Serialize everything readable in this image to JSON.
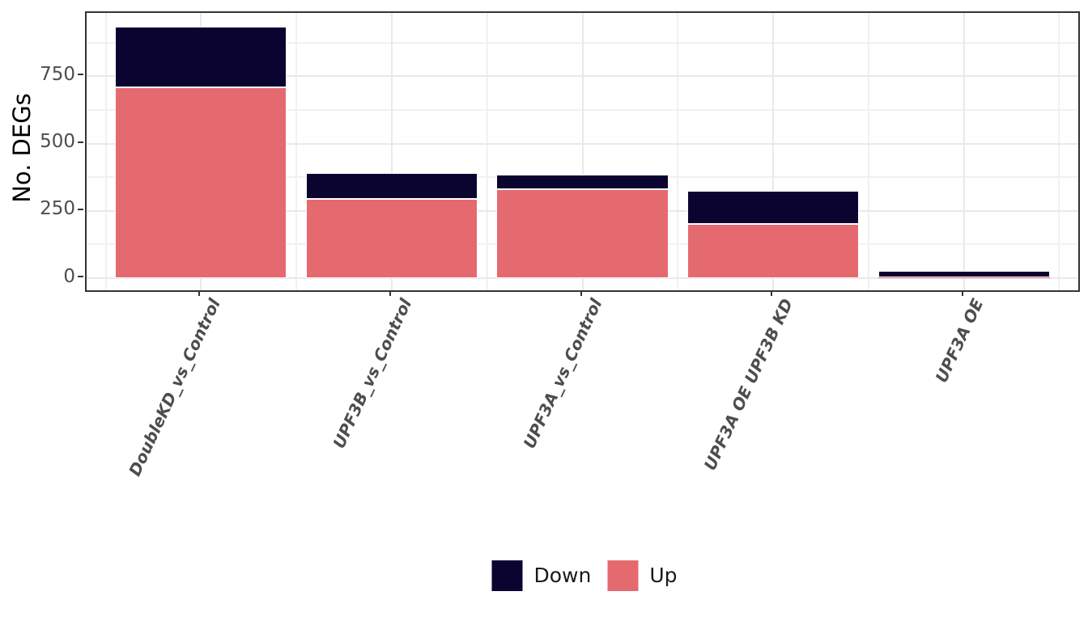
{
  "chart_data": {
    "type": "bar",
    "stacked": true,
    "title": "",
    "xlabel": "",
    "ylabel": "No. DEGs",
    "categories": [
      "DoubleKD_vs_Control",
      "UPF3B_vs_Control",
      "UPF3A_vs_Control",
      "UPF3A OE UPF3B KD",
      "UPF3A OE"
    ],
    "series": [
      {
        "name": "Up",
        "color": "#e56a6f",
        "values": [
          710,
          295,
          330,
          200,
          2
        ]
      },
      {
        "name": "Down",
        "color": "#0c0430",
        "values": [
          225,
          95,
          55,
          125,
          25
        ]
      }
    ],
    "totals": [
      935,
      390,
      385,
      325,
      27
    ],
    "y_axis": {
      "ticks": [
        0,
        250,
        500,
        750
      ],
      "tick_labels": [
        "0",
        "250",
        "500",
        "750"
      ],
      "minor_ticks": [
        125,
        375,
        625,
        875
      ],
      "ylim": [
        -45,
        985
      ]
    },
    "x_tick_angle": 65,
    "grid": true,
    "legend": {
      "position": "bottom",
      "entries": [
        {
          "label": "Down",
          "series": "Down"
        },
        {
          "label": "Up",
          "series": "Up"
        }
      ]
    }
  },
  "colors": {
    "up": "#e56a6f",
    "down": "#0c0430",
    "panel_border": "#333333",
    "grid_major": "#e9e9e9",
    "grid_minor": "#f1f1f1",
    "tick_text": "#4d4d4d",
    "axis_title_text": "#000000",
    "legend_text": "#1a1a1a",
    "background": "#ffffff"
  }
}
